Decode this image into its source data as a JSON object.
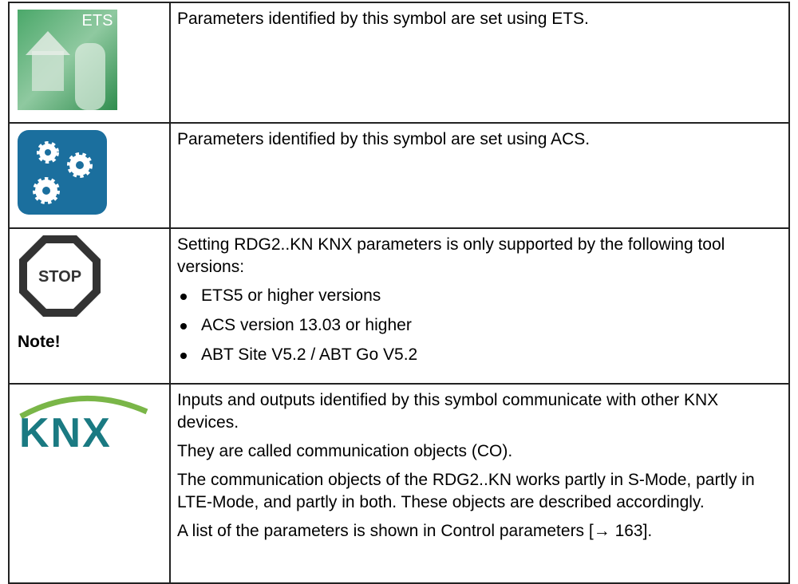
{
  "table": {
    "rows": [
      {
        "icon": "ETS",
        "text": [
          "Parameters identified by this symbol are set using ETS."
        ]
      },
      {
        "text": [
          "Parameters identified by this symbol are set using ACS."
        ]
      },
      {
        "icon": "STOP",
        "note": "Note!",
        "text": [
          "Setting RDG2..KN KNX parameters is only supported by the following tool versions:"
        ],
        "bullets": [
          "ETS5 or higher versions",
          "ACS version 13.03 or higher",
          "ABT Site V5.2 / ABT Go V5.2"
        ]
      },
      {
        "icon": "KNX",
        "text": [
          "Inputs and outputs identified by this symbol communicate with other KNX devices.",
          "They are called communication objects (CO).",
          "The communication objects of the RDG2..KN works partly in S-Mode, partly in LTE-Mode, and partly in both. These objects are described accordingly.",
          "A list of the parameters is shown in Control parameters [→ 163]."
        ]
      }
    ]
  }
}
